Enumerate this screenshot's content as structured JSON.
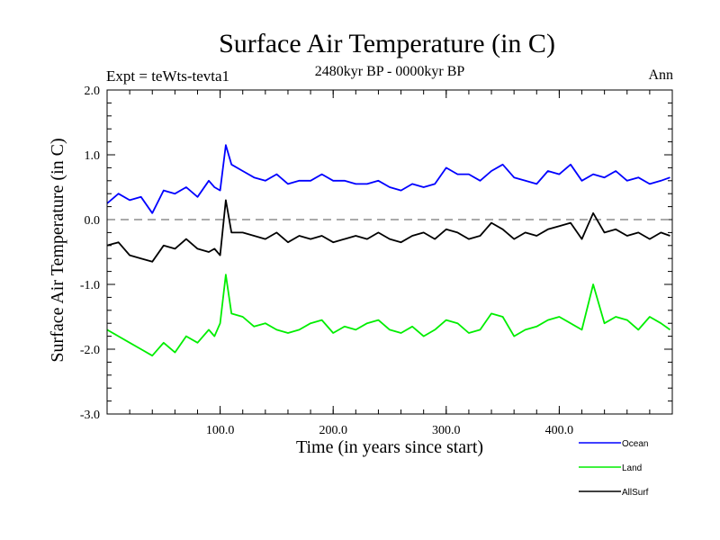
{
  "chart_data": {
    "type": "line",
    "title": "Surface Air Temperature (in C)",
    "subtitle": "2480kyr BP - 0000kyr BP",
    "expt_label": "Expt = teWts-tevta1",
    "season_label": "Ann",
    "xlabel": "Time (in years since start)",
    "ylabel": "Surface Air Temperature (in C)",
    "xlim": [
      0,
      500
    ],
    "ylim": [
      -3.0,
      2.0
    ],
    "x_ticks": [
      100,
      200,
      300,
      400
    ],
    "x_tick_labels": [
      "100.0",
      "200.0",
      "300.0",
      "400.0"
    ],
    "y_ticks": [
      2.0,
      1.0,
      0.0,
      -1.0,
      -2.0,
      -3.0
    ],
    "y_tick_labels": [
      "2.0",
      "1.0",
      "0.0",
      "-1.0",
      "-2.0",
      "-3.0"
    ],
    "reference_line": 0.0,
    "series": [
      {
        "name": "Ocean",
        "color": "#0000ff",
        "x": [
          0,
          10,
          20,
          30,
          40,
          50,
          60,
          70,
          80,
          90,
          95,
          100,
          105,
          110,
          120,
          130,
          140,
          150,
          160,
          170,
          180,
          190,
          200,
          210,
          220,
          230,
          240,
          250,
          260,
          270,
          280,
          290,
          300,
          310,
          320,
          330,
          340,
          350,
          360,
          370,
          380,
          390,
          400,
          410,
          420,
          430,
          440,
          450,
          460,
          470,
          480,
          490,
          498
        ],
        "values": [
          0.25,
          0.4,
          0.3,
          0.35,
          0.1,
          0.45,
          0.4,
          0.5,
          0.35,
          0.6,
          0.5,
          0.45,
          1.15,
          0.85,
          0.75,
          0.65,
          0.6,
          0.7,
          0.55,
          0.6,
          0.6,
          0.7,
          0.6,
          0.6,
          0.55,
          0.55,
          0.6,
          0.5,
          0.45,
          0.55,
          0.5,
          0.55,
          0.8,
          0.7,
          0.7,
          0.6,
          0.75,
          0.85,
          0.65,
          0.6,
          0.55,
          0.75,
          0.7,
          0.85,
          0.6,
          0.7,
          0.65,
          0.75,
          0.6,
          0.65,
          0.55,
          0.6,
          0.65
        ]
      },
      {
        "name": "Land",
        "color": "#00ee00",
        "x": [
          0,
          10,
          20,
          30,
          40,
          50,
          60,
          70,
          80,
          90,
          95,
          100,
          105,
          110,
          120,
          130,
          140,
          150,
          160,
          170,
          180,
          190,
          200,
          210,
          220,
          230,
          240,
          250,
          260,
          270,
          280,
          290,
          300,
          310,
          320,
          330,
          340,
          350,
          360,
          370,
          380,
          390,
          400,
          410,
          420,
          430,
          440,
          450,
          460,
          470,
          480,
          490,
          498
        ],
        "values": [
          -1.7,
          -1.8,
          -1.9,
          -2.0,
          -2.1,
          -1.9,
          -2.05,
          -1.8,
          -1.9,
          -1.7,
          -1.8,
          -1.6,
          -0.85,
          -1.45,
          -1.5,
          -1.65,
          -1.6,
          -1.7,
          -1.75,
          -1.7,
          -1.6,
          -1.55,
          -1.75,
          -1.65,
          -1.7,
          -1.6,
          -1.55,
          -1.7,
          -1.75,
          -1.65,
          -1.8,
          -1.7,
          -1.55,
          -1.6,
          -1.75,
          -1.7,
          -1.45,
          -1.5,
          -1.8,
          -1.7,
          -1.65,
          -1.55,
          -1.5,
          -1.6,
          -1.7,
          -1.0,
          -1.6,
          -1.5,
          -1.55,
          -1.7,
          -1.5,
          -1.6,
          -1.7
        ]
      },
      {
        "name": "AllSurf",
        "color": "#000000",
        "x": [
          0,
          10,
          20,
          30,
          40,
          50,
          60,
          70,
          80,
          90,
          95,
          100,
          105,
          110,
          120,
          130,
          140,
          150,
          160,
          170,
          180,
          190,
          200,
          210,
          220,
          230,
          240,
          250,
          260,
          270,
          280,
          290,
          300,
          310,
          320,
          330,
          340,
          350,
          360,
          370,
          380,
          390,
          400,
          410,
          420,
          430,
          440,
          450,
          460,
          470,
          480,
          490,
          498
        ],
        "values": [
          -0.4,
          -0.35,
          -0.55,
          -0.6,
          -0.65,
          -0.4,
          -0.45,
          -0.3,
          -0.45,
          -0.5,
          -0.45,
          -0.55,
          0.3,
          -0.2,
          -0.2,
          -0.25,
          -0.3,
          -0.2,
          -0.35,
          -0.25,
          -0.3,
          -0.25,
          -0.35,
          -0.3,
          -0.25,
          -0.3,
          -0.2,
          -0.3,
          -0.35,
          -0.25,
          -0.2,
          -0.3,
          -0.15,
          -0.2,
          -0.3,
          -0.25,
          -0.05,
          -0.15,
          -0.3,
          -0.2,
          -0.25,
          -0.15,
          -0.1,
          -0.05,
          -0.3,
          0.1,
          -0.2,
          -0.15,
          -0.25,
          -0.2,
          -0.3,
          -0.2,
          -0.25
        ]
      }
    ]
  }
}
